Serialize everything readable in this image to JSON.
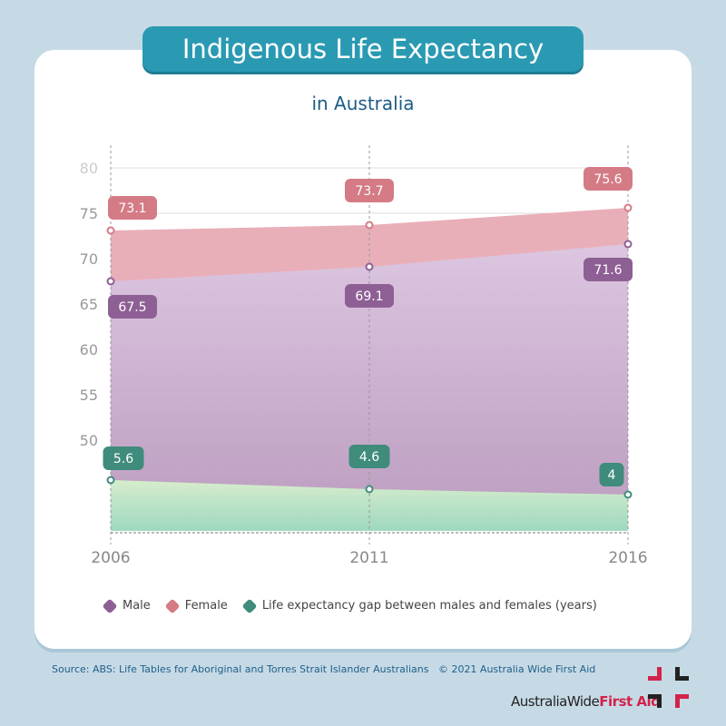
{
  "title": "Indigenous Life Expectancy",
  "subtitle": "in Australia",
  "chart_data": {
    "type": "area",
    "categories": [
      "2006",
      "2011",
      "2016"
    ],
    "ylim": [
      40,
      80
    ],
    "yticks": [
      "50",
      "55",
      "60",
      "65",
      "70",
      "75",
      "80"
    ],
    "grid": true,
    "legend_position": "bottom",
    "series": [
      {
        "name": "Male",
        "values": [
          67.5,
          69.1,
          71.6
        ],
        "color": "#8e5f94"
      },
      {
        "name": "Female",
        "values": [
          73.1,
          73.7,
          75.6
        ],
        "color": "#d47b86"
      },
      {
        "name": "Life expectancy gap between males and females (years)",
        "values": [
          5.6,
          4.6,
          4
        ],
        "color": "#3f8c7c"
      }
    ]
  },
  "footer": {
    "source": "Source: ABS: Life Tables for Aboriginal and Torres Strait Islander Australians   © 2021 Australia Wide First Aid",
    "logo_text_1": "AustraliaWide",
    "logo_text_2": "First Aid"
  }
}
